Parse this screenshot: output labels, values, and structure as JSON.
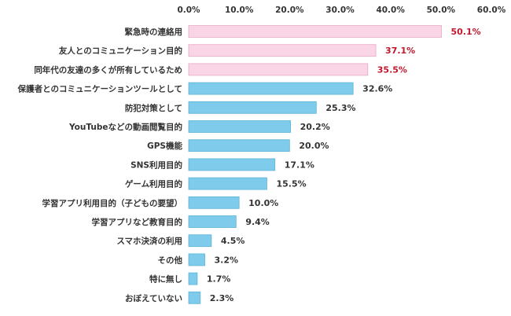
{
  "chart_data": {
    "type": "bar",
    "orientation": "horizontal",
    "categories": [
      "緊急時の連絡用",
      "友人とのコミュニケーション目的",
      "同年代の友達の多くが所有しているため",
      "保護者とのコミュニケーションツールとして",
      "防犯対策として",
      "YouTubeなどの動画閲覧目的",
      "GPS機能",
      "SNS利用目的",
      "ゲーム利用目的",
      "学習アプリ利用目的（子どもの要望）",
      "学習アプリなど教育目的",
      "スマホ決済の利用",
      "その他",
      "特に無し",
      "おぼえていない"
    ],
    "values": [
      50.1,
      37.1,
      35.5,
      32.6,
      25.3,
      20.2,
      20.0,
      17.1,
      15.5,
      10.0,
      9.4,
      4.5,
      3.2,
      1.7,
      2.3
    ],
    "value_labels": [
      "50.1%",
      "37.1%",
      "35.5%",
      "32.6%",
      "25.3%",
      "20.2%",
      "20.0%",
      "17.1%",
      "15.5%",
      "10.0%",
      "9.4%",
      "4.5%",
      "3.2%",
      "1.7%",
      "2.3%"
    ],
    "highlighted_count": 3,
    "xlim": [
      0,
      60
    ],
    "x_ticks": [
      "0.0%",
      "10.0%",
      "20.0%",
      "30.0%",
      "40.0%",
      "50.0%",
      "60.0%"
    ],
    "x_tick_values": [
      0,
      10,
      20,
      30,
      40,
      50,
      60
    ],
    "x_axis_position": "top",
    "grid": false,
    "legend": "none",
    "colors": {
      "highlight_bar": "#f9d5e5",
      "highlight_bar_edge": "#e8a9c4",
      "normal_bar": "#7ecbeb",
      "normal_bar_edge": "#5fb4d8",
      "highlight_label": "#c0172d",
      "normal_label": "#333333"
    }
  }
}
